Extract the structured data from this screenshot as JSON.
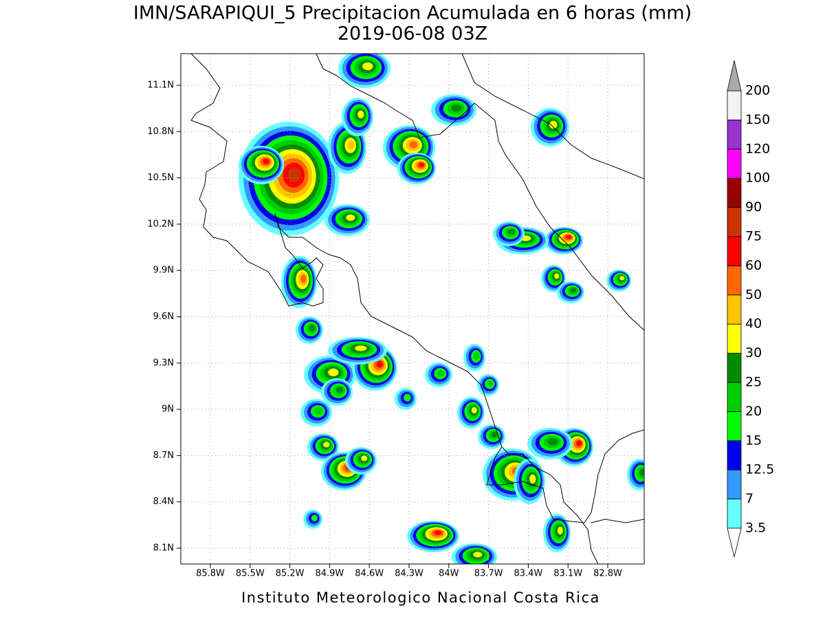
{
  "map": {
    "title": "IMN/SARAPIQUI_5 Precipitacion Acumulada en 6 horas (mm)",
    "subtitle": "2019-06-08 03Z",
    "footer": "Instituto Meteorologico Nacional Costa Rica",
    "lon_ticks": [
      {
        "value": -85.8,
        "label": "85.8W"
      },
      {
        "value": -85.5,
        "label": "85.5W"
      },
      {
        "value": -85.2,
        "label": "85.2W"
      },
      {
        "value": -84.9,
        "label": "84.9W"
      },
      {
        "value": -84.6,
        "label": "84.6W"
      },
      {
        "value": -84.3,
        "label": "84.3W"
      },
      {
        "value": -84,
        "label": "84W"
      },
      {
        "value": -83.7,
        "label": "83.7W"
      },
      {
        "value": -83.4,
        "label": "83.4W"
      },
      {
        "value": -83.1,
        "label": "83.1W"
      },
      {
        "value": -82.8,
        "label": "82.8W"
      }
    ],
    "lat_ticks": [
      {
        "value": 11.1,
        "label": "11.1N"
      },
      {
        "value": 10.8,
        "label": "10.8N"
      },
      {
        "value": 10.5,
        "label": "10.5N"
      },
      {
        "value": 10.2,
        "label": "10.2N"
      },
      {
        "value": 9.9,
        "label": "9.9N"
      },
      {
        "value": 9.6,
        "label": "9.6N"
      },
      {
        "value": 9.3,
        "label": "9.3N"
      },
      {
        "value": 9,
        "label": "9N"
      },
      {
        "value": 8.7,
        "label": "8.7N"
      },
      {
        "value": 8.4,
        "label": "8.4N"
      },
      {
        "value": 8.1,
        "label": "8.1N"
      }
    ],
    "colorbar": {
      "levels": [
        3.5,
        7,
        12.5,
        15,
        20,
        25,
        30,
        40,
        50,
        60,
        75,
        90,
        100,
        120,
        150,
        200
      ],
      "colors": [
        "#66ffff",
        "#3399ff",
        "#0000ee",
        "#00ff00",
        "#00cc00",
        "#008c00",
        "#ffff00",
        "#ffc400",
        "#ff6600",
        "#ff0000",
        "#cc3300",
        "#990000",
        "#ff00ff",
        "#9933cc",
        "#f2f2f2"
      ],
      "over_color": "#aaaaaa",
      "under_color": "#ffffff"
    }
  }
}
